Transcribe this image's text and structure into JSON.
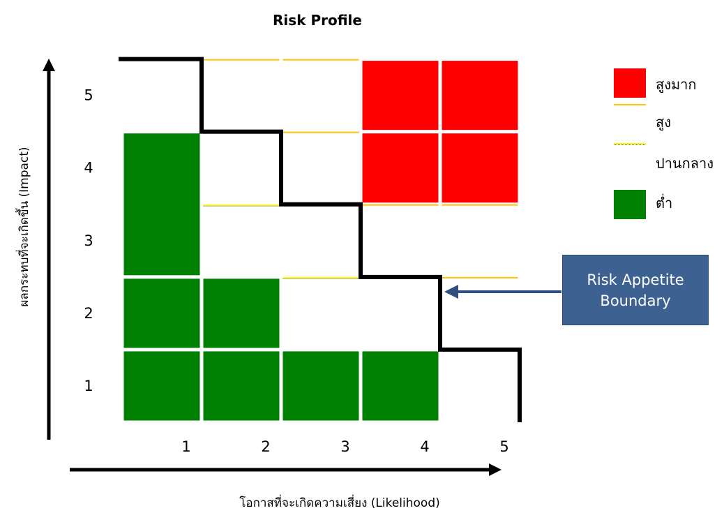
{
  "chart_data": {
    "type": "heatmap",
    "title": "Risk Profile",
    "xlabel": "โอกาสที่จะเกิดความเสี่ยง (Likelihood)",
    "ylabel": "ผลกระทบที่จะเกิดขึ้น (Impact)",
    "x_ticks": [
      "1",
      "2",
      "3",
      "4",
      "5"
    ],
    "y_ticks": [
      "1",
      "2",
      "3",
      "4",
      "5"
    ],
    "colors": {
      "very_high": "#ff0000",
      "high": "#ffc000",
      "medium": "#ffff00",
      "low": "#008000",
      "boundary": "#000000",
      "callout": "#3d6291",
      "arrow": "#2f4f80"
    },
    "legend": [
      {
        "key": "very_high",
        "label": "สูงมาก"
      },
      {
        "key": "high",
        "label": "สูง"
      },
      {
        "key": "medium",
        "label": "ปานกลาง"
      },
      {
        "key": "low",
        "label": "ต่ำ"
      }
    ],
    "legend_position": "right",
    "cells": [
      {
        "likelihood": 1,
        "impact": 1,
        "level": "low"
      },
      {
        "likelihood": 2,
        "impact": 1,
        "level": "low"
      },
      {
        "likelihood": 3,
        "impact": 1,
        "level": "low"
      },
      {
        "likelihood": 4,
        "impact": 1,
        "level": "low"
      },
      {
        "likelihood": 5,
        "impact": 1,
        "level": "medium"
      },
      {
        "likelihood": 1,
        "impact": 2,
        "level": "low"
      },
      {
        "likelihood": 2,
        "impact": 2,
        "level": "low"
      },
      {
        "likelihood": 3,
        "impact": 2,
        "level": "medium"
      },
      {
        "likelihood": 4,
        "impact": 2,
        "level": "medium"
      },
      {
        "likelihood": 5,
        "impact": 2,
        "level": "high"
      },
      {
        "likelihood": 1,
        "impact": 3,
        "level": "low"
      },
      {
        "likelihood": 2,
        "impact": 3,
        "level": "medium"
      },
      {
        "likelihood": 3,
        "impact": 3,
        "level": "medium"
      },
      {
        "likelihood": 4,
        "impact": 3,
        "level": "high"
      },
      {
        "likelihood": 5,
        "impact": 3,
        "level": "high"
      },
      {
        "likelihood": 1,
        "impact": 4,
        "level": "low"
      },
      {
        "likelihood": 2,
        "impact": 4,
        "level": "medium"
      },
      {
        "likelihood": 3,
        "impact": 4,
        "level": "high"
      },
      {
        "likelihood": 4,
        "impact": 4,
        "level": "very_high"
      },
      {
        "likelihood": 5,
        "impact": 4,
        "level": "very_high"
      },
      {
        "likelihood": 1,
        "impact": 5,
        "level": "medium"
      },
      {
        "likelihood": 2,
        "impact": 5,
        "level": "high"
      },
      {
        "likelihood": 3,
        "impact": 5,
        "level": "high"
      },
      {
        "likelihood": 4,
        "impact": 5,
        "level": "very_high"
      },
      {
        "likelihood": 5,
        "impact": 5,
        "level": "very_high"
      }
    ],
    "merged_cells": [
      {
        "likelihood": 1,
        "impact_from": 3,
        "impact_to": 4,
        "level": "low"
      }
    ],
    "boundary_steps": [
      {
        "likelihood_from": 0,
        "likelihood_to": 1,
        "impact": 5
      },
      {
        "likelihood_from": 1,
        "likelihood_to": 2,
        "impact": 4
      },
      {
        "likelihood_from": 2,
        "likelihood_to": 3,
        "impact": 3
      },
      {
        "likelihood_from": 3,
        "likelihood_to": 4,
        "impact": 2
      },
      {
        "likelihood_from": 4,
        "likelihood_to": 5,
        "impact": 1
      },
      {
        "likelihood_from": 5,
        "likelihood_to": 5,
        "impact": 0
      }
    ],
    "annotation": {
      "line1": "Risk Appetite",
      "line2": "Boundary"
    }
  }
}
